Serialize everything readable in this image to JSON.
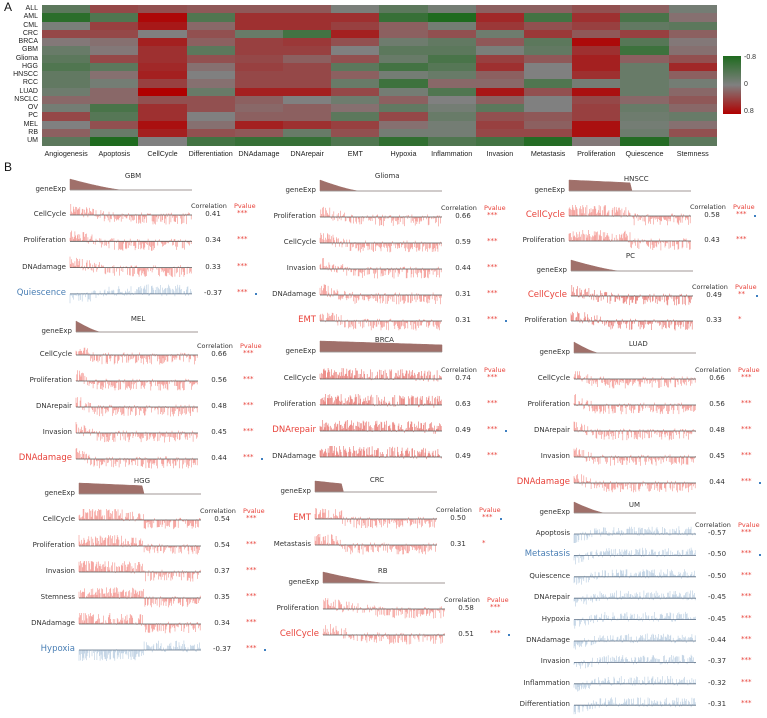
{
  "panel_labels": {
    "a": "A",
    "b": "B"
  },
  "chart_data": [
    {
      "type": "heatmap",
      "rows": [
        "ALL",
        "AML",
        "CML",
        "CRC",
        "BRCA",
        "GBM",
        "Glioma",
        "HGG",
        "HNSCC",
        "RCC",
        "LUAD",
        "NSCLC",
        "OV",
        "PC",
        "MEL",
        "RB",
        "UM"
      ],
      "columns": [
        "Angiogenesis",
        "Apoptosis",
        "CellCycle",
        "Differentiation",
        "DNAdamage",
        "DNArepair",
        "EMT",
        "Hypoxia",
        "Inflammation",
        "Invasion",
        "Metastasis",
        "Proliferation",
        "Quiescence",
        "Stemness"
      ],
      "values": [
        [
          -0.3,
          0.35,
          0.3,
          0.25,
          0.25,
          0.25,
          -0.05,
          -0.3,
          -0.1,
          0.2,
          0.2,
          0.3,
          0.2,
          -0.1
        ],
        [
          -0.7,
          -0.4,
          0.75,
          -0.4,
          0.5,
          0.5,
          0.5,
          -0.6,
          -0.8,
          0.55,
          -0.5,
          0.5,
          -0.45,
          0.1
        ],
        [
          -0.05,
          0.4,
          0.65,
          0.15,
          0.5,
          0.5,
          0.4,
          0.2,
          -0.1,
          0.45,
          0.3,
          0.4,
          -0.25,
          -0.3
        ],
        [
          0.35,
          0.35,
          0.0,
          0.3,
          -0.2,
          -0.5,
          0.6,
          0.2,
          0.3,
          -0.15,
          0.45,
          0.25,
          0.4,
          0.2
        ],
        [
          0.05,
          0.1,
          0.6,
          0.2,
          0.4,
          0.45,
          0.3,
          -0.15,
          -0.25,
          0.25,
          -0.3,
          0.74,
          -0.35,
          0.05
        ],
        [
          -0.2,
          0.05,
          0.5,
          -0.3,
          0.4,
          0.4,
          0.0,
          -0.3,
          -0.3,
          -0.05,
          -0.25,
          0.5,
          -0.55,
          0.1
        ],
        [
          -0.3,
          0.35,
          0.5,
          0.3,
          0.35,
          0.2,
          0.3,
          -0.2,
          -0.45,
          0.4,
          0.25,
          0.6,
          0.2,
          0.3
        ],
        [
          -0.4,
          -0.3,
          0.55,
          0.1,
          0.4,
          0.35,
          -0.3,
          -0.5,
          -0.35,
          0.5,
          0.0,
          0.6,
          -0.2,
          0.55
        ],
        [
          -0.25,
          0.1,
          0.6,
          0.0,
          0.35,
          0.35,
          0.2,
          -0.1,
          -0.2,
          0.2,
          0.0,
          0.5,
          -0.2,
          0.2
        ],
        [
          -0.25,
          -0.1,
          0.4,
          0.1,
          0.35,
          0.35,
          -0.2,
          -0.55,
          0.15,
          0.15,
          -0.4,
          -0.1,
          -0.2,
          -0.1
        ],
        [
          -0.15,
          0.15,
          0.85,
          -0.2,
          0.6,
          0.6,
          0.35,
          -0.1,
          -0.4,
          0.66,
          0.3,
          0.7,
          -0.2,
          0.15
        ],
        [
          0.15,
          0.15,
          0.3,
          0.3,
          0.2,
          0.0,
          -0.15,
          0.2,
          0.0,
          0.2,
          0.0,
          0.35,
          0.15,
          0.25
        ],
        [
          -0.1,
          -0.45,
          0.5,
          0.3,
          0.15,
          0.2,
          0.1,
          -0.25,
          -0.1,
          -0.3,
          0.0,
          0.4,
          -0.2,
          0.15
        ],
        [
          0.35,
          -0.35,
          0.5,
          0.0,
          0.2,
          0.2,
          -0.3,
          0.35,
          -0.2,
          0.3,
          0.25,
          0.4,
          -0.15,
          -0.2
        ],
        [
          0.0,
          0.3,
          0.7,
          0.1,
          0.6,
          0.5,
          0.4,
          0.1,
          -0.1,
          0.4,
          0.2,
          0.7,
          -0.1,
          0.1
        ],
        [
          0.2,
          -0.2,
          0.6,
          0.3,
          0.25,
          -0.2,
          0.3,
          -0.1,
          -0.1,
          0.35,
          0.35,
          0.7,
          -0.15,
          0.3
        ],
        [
          -0.3,
          -0.8,
          0.0,
          -0.5,
          -0.6,
          -0.6,
          -0.4,
          -0.65,
          -0.4,
          -0.5,
          -0.75,
          0.05,
          -0.75,
          -0.3
        ]
      ],
      "colorscale": {
        "min": -0.8,
        "mid": 0,
        "max": 0.8,
        "min_color": "#1f6b1f",
        "mid_color": "#808080",
        "max_color": "#b00000"
      },
      "legend": {
        "labels": [
          "-0.8",
          "0",
          "0.8"
        ],
        "placement": "right"
      }
    }
  ],
  "panel_b": {
    "header_correlation": "Correlation",
    "header_pvalue": "Pvalue",
    "gene_label": "geneExp",
    "colors": {
      "positive": "#ef6b63",
      "negative": "#9fbbd6",
      "highlight_red": "#e8423a",
      "highlight_blue": "#4a7fb5",
      "gene": "#a0706a",
      "marker": "#3d7fc0"
    },
    "panels": [
      {
        "name": "GBM",
        "rows": [
          {
            "label": "CellCycle",
            "corr": "0.41",
            "pval": "***"
          },
          {
            "label": "Proliferation",
            "corr": "0.34",
            "pval": "***"
          },
          {
            "label": "DNAdamage",
            "corr": "0.33",
            "pval": "***"
          },
          {
            "label": "Quiescence",
            "corr": "-0.37",
            "pval": "***",
            "highlight": "blue",
            "marker": true
          }
        ]
      },
      {
        "name": "MEL",
        "rows": [
          {
            "label": "CellCycle",
            "corr": "0.66",
            "pval": "***"
          },
          {
            "label": "Proliferation",
            "corr": "0.56",
            "pval": "***"
          },
          {
            "label": "DNArepair",
            "corr": "0.48",
            "pval": "***"
          },
          {
            "label": "Invasion",
            "corr": "0.45",
            "pval": "***"
          },
          {
            "label": "DNAdamage",
            "corr": "0.44",
            "pval": "***",
            "highlight": "red",
            "marker": true
          }
        ]
      },
      {
        "name": "HGG",
        "rows": [
          {
            "label": "CellCycle",
            "corr": "0.54",
            "pval": "***"
          },
          {
            "label": "Proliferation",
            "corr": "0.54",
            "pval": "***"
          },
          {
            "label": "Invasion",
            "corr": "0.37",
            "pval": "***"
          },
          {
            "label": "Stemness",
            "corr": "0.35",
            "pval": "***"
          },
          {
            "label": "DNAdamage",
            "corr": "0.34",
            "pval": "***"
          },
          {
            "label": "Hypoxia",
            "corr": "-0.37",
            "pval": "***",
            "highlight": "blue",
            "marker": true
          }
        ]
      },
      {
        "name": "Glioma",
        "rows": [
          {
            "label": "Proliferation",
            "corr": "0.66",
            "pval": "***"
          },
          {
            "label": "CellCycle",
            "corr": "0.59",
            "pval": "***"
          },
          {
            "label": "Invasion",
            "corr": "0.44",
            "pval": "***"
          },
          {
            "label": "DNAdamage",
            "corr": "0.31",
            "pval": "***"
          },
          {
            "label": "EMT",
            "corr": "0.31",
            "pval": "***",
            "highlight": "red",
            "marker": true
          }
        ]
      },
      {
        "name": "BRCA",
        "rows": [
          {
            "label": "CellCycle",
            "corr": "0.74",
            "pval": "***"
          },
          {
            "label": "Proliferation",
            "corr": "0.63",
            "pval": "***"
          },
          {
            "label": "DNArepair",
            "corr": "0.49",
            "pval": "***",
            "highlight": "red",
            "marker": true
          },
          {
            "label": "DNAdamage",
            "corr": "0.49",
            "pval": "***"
          }
        ]
      },
      {
        "name": "CRC",
        "rows": [
          {
            "label": "EMT",
            "corr": "0.50",
            "pval": "***",
            "highlight": "red",
            "marker": true
          },
          {
            "label": "Metastasis",
            "corr": "0.31",
            "pval": "*"
          }
        ]
      },
      {
        "name": "RB",
        "rows": [
          {
            "label": "Proliferation",
            "corr": "0.58",
            "pval": "***"
          },
          {
            "label": "CellCycle",
            "corr": "0.51",
            "pval": "***",
            "highlight": "red",
            "marker": true
          }
        ]
      },
      {
        "name": "HNSCC",
        "rows": [
          {
            "label": "CellCycle",
            "corr": "0.58",
            "pval": "***",
            "highlight": "red",
            "marker": true
          },
          {
            "label": "Proliferation",
            "corr": "0.43",
            "pval": "***"
          }
        ]
      },
      {
        "name": "PC",
        "rows": [
          {
            "label": "CellCycle",
            "corr": "0.49",
            "pval": "**",
            "highlight": "red",
            "marker": true
          },
          {
            "label": "Proliferation",
            "corr": "0.33",
            "pval": "*"
          }
        ]
      },
      {
        "name": "LUAD",
        "rows": [
          {
            "label": "CellCycle",
            "corr": "0.66",
            "pval": "***"
          },
          {
            "label": "Proliferation",
            "corr": "0.56",
            "pval": "***"
          },
          {
            "label": "DNArepair",
            "corr": "0.48",
            "pval": "***"
          },
          {
            "label": "Invasion",
            "corr": "0.45",
            "pval": "***"
          },
          {
            "label": "DNAdamage",
            "corr": "0.44",
            "pval": "***",
            "highlight": "red",
            "marker": true
          }
        ]
      },
      {
        "name": "UM",
        "rows": [
          {
            "label": "Apoptosis",
            "corr": "-0.57",
            "pval": "***"
          },
          {
            "label": "Metastasis",
            "corr": "-0.50",
            "pval": "***",
            "highlight": "blue",
            "marker": true
          },
          {
            "label": "Quiescence",
            "corr": "-0.50",
            "pval": "***"
          },
          {
            "label": "DNArepair",
            "corr": "-0.45",
            "pval": "***"
          },
          {
            "label": "Hypoxia",
            "corr": "-0.45",
            "pval": "***"
          },
          {
            "label": "DNAdamage",
            "corr": "-0.44",
            "pval": "***"
          },
          {
            "label": "Invasion",
            "corr": "-0.37",
            "pval": "***"
          },
          {
            "label": "Inflammation",
            "corr": "-0.32",
            "pval": "***"
          },
          {
            "label": "Differentiation",
            "corr": "-0.31",
            "pval": "***"
          }
        ]
      }
    ]
  }
}
